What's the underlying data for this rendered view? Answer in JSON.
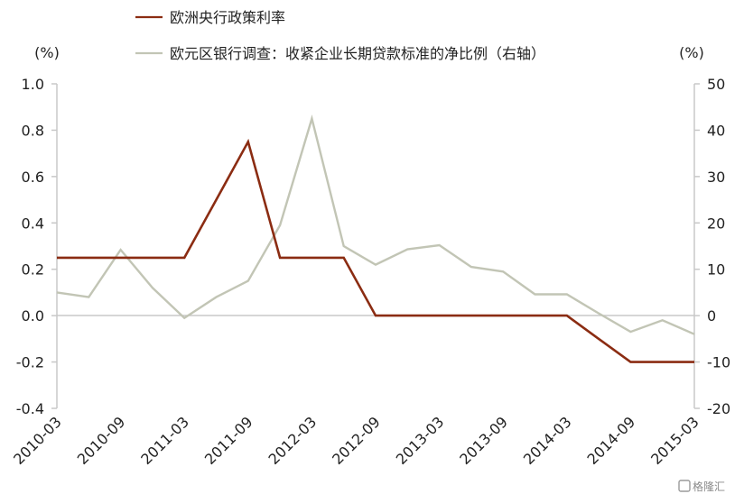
{
  "chart_data": {
    "type": "line",
    "x": [
      "2010-03",
      "2010-06",
      "2010-09",
      "2010-12",
      "2011-03",
      "2011-06",
      "2011-09",
      "2011-12",
      "2012-03",
      "2012-06",
      "2012-09",
      "2012-12",
      "2013-03",
      "2013-06",
      "2013-09",
      "2013-12",
      "2014-03",
      "2014-06",
      "2014-09",
      "2014-12",
      "2015-03"
    ],
    "x_tick_labels": [
      "2010-03",
      "2010-09",
      "2011-03",
      "2011-09",
      "2012-03",
      "2012-09",
      "2013-03",
      "2013-09",
      "2014-03",
      "2014-09",
      "2015-03"
    ],
    "series": [
      {
        "name": "欧洲央行政策利率",
        "axis": "left",
        "color": "#8b2c12",
        "values": [
          0.25,
          0.25,
          0.25,
          0.25,
          0.25,
          0.5,
          0.75,
          0.25,
          0.25,
          0.25,
          0.0,
          0.0,
          0.0,
          0.0,
          0.0,
          0.0,
          0.0,
          -0.1,
          -0.2,
          -0.2,
          -0.2
        ]
      },
      {
        "name": "欧元区银行调查：收紧企业长期贷款标准的净比例（右轴）",
        "axis": "right",
        "color": "#c2c5b5",
        "values": [
          5,
          4,
          14.2,
          6,
          -0.5,
          4,
          7.5,
          19.5,
          42.5,
          15,
          11,
          14.3,
          15.2,
          10.5,
          9.5,
          4.6,
          4.6,
          0.5,
          -3.5,
          -1,
          -4
        ]
      }
    ],
    "left_axis": {
      "unit_label": "(%)",
      "ylim": [
        -0.4,
        1.0
      ],
      "ticks": [
        "1.0",
        "0.8",
        "0.6",
        "0.4",
        "0.2",
        "0.0",
        "-0.2",
        "-0.4"
      ]
    },
    "right_axis": {
      "unit_label": "(%)",
      "ylim": [
        -20,
        50
      ],
      "ticks": [
        "50",
        "40",
        "30",
        "20",
        "10",
        "0",
        "-10",
        "-20"
      ]
    },
    "legend_position": "top-left",
    "grid": false
  },
  "watermark": "格隆汇"
}
